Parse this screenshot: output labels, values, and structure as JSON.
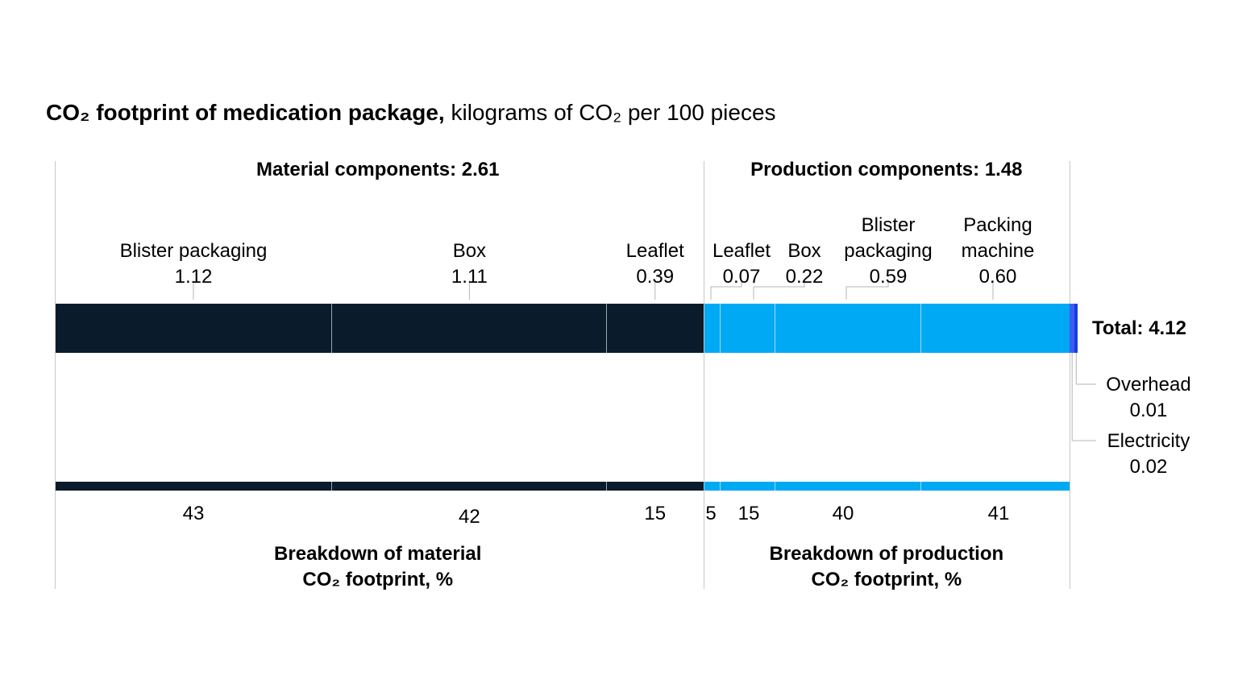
{
  "chart_data": {
    "type": "stacked-bar",
    "title": "CO₂ footprint of medication package,",
    "subtitle": "kilograms of CO₂ per 100 pieces",
    "total_label": "Total: 4.12",
    "total": 4.12,
    "groups": [
      {
        "name": "Material components: 2.61",
        "value": 2.61,
        "color": "#0a1c2c",
        "footer": [
          "Breakdown of material",
          "CO₂ footprint, %"
        ],
        "segments": [
          {
            "label": [
              "Blister packaging"
            ],
            "value": 1.12,
            "value_label": "1.12",
            "pct": "43"
          },
          {
            "label": [
              "Box"
            ],
            "value": 1.11,
            "value_label": "1.11",
            "pct": "42"
          },
          {
            "label": [
              "Leaflet"
            ],
            "value": 0.39,
            "value_label": "0.39",
            "pct": "15"
          }
        ]
      },
      {
        "name": "Production components: 1.48",
        "value": 1.48,
        "color": "#00a9f4",
        "footer": [
          "Breakdown of production",
          "CO₂ footprint, %"
        ],
        "segments": [
          {
            "label": [
              "Leaflet"
            ],
            "value": 0.07,
            "value_label": "0.07",
            "pct": "5"
          },
          {
            "label": [
              "Box"
            ],
            "value": 0.22,
            "value_label": "0.22",
            "pct": "15"
          },
          {
            "label": [
              "Blister",
              "packaging"
            ],
            "value": 0.59,
            "value_label": "0.59",
            "pct": "40"
          },
          {
            "label": [
              "Packing",
              "machine"
            ],
            "value": 0.6,
            "value_label": "0.60",
            "pct": "41"
          }
        ]
      }
    ],
    "extras": [
      {
        "label": "Electricity",
        "value": 0.02,
        "value_label": "0.02",
        "color": "#3d5cf5"
      },
      {
        "label": "Overhead",
        "value": 0.01,
        "value_label": "0.01",
        "color": "#1a3de0"
      }
    ]
  }
}
